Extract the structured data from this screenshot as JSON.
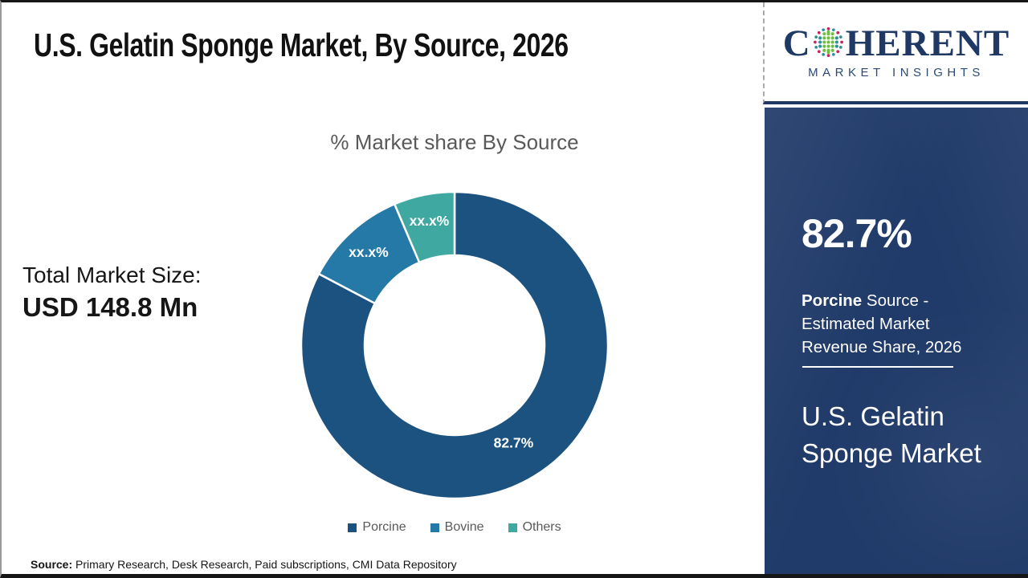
{
  "header": {
    "title": "U.S. Gelatin Sponge Market, By Source, 2026"
  },
  "logo": {
    "brand_first_letter": "C",
    "brand_rest": "HERENT",
    "tagline": "MARKET INSIGHTS",
    "navy": "#1F3864",
    "globe_colors": {
      "teal": "#2D8F99",
      "green": "#70BE3F",
      "crimson": "#C4245C"
    }
  },
  "chart_data": {
    "type": "pie",
    "variant": "donut",
    "title": "% Market share By Source",
    "labels": [
      "Porcine",
      "Bovine",
      "Others"
    ],
    "values": [
      82.7,
      10.9,
      6.4
    ],
    "display_labels": [
      "82.7%",
      "xx.x%",
      "xx.x%"
    ],
    "colors": [
      "#1C527F",
      "#2579A6",
      "#3FA9A1"
    ],
    "legend_position": "bottom",
    "start_angle_deg": 0,
    "direction": "clockwise"
  },
  "total_market": {
    "label": "Total Market Size:",
    "value": "USD 148.8 Mn"
  },
  "source_note": {
    "label": "Source:",
    "text": " Primary Research, Desk Research, Paid subscriptions, CMI Data Repository"
  },
  "panel": {
    "background": "#203A69",
    "stat_value": "82.7%",
    "stat_term": "Porcine",
    "stat_desc_rest": " Source -\nEstimated Market\nRevenue Share, 2026",
    "market_name": "U.S. Gelatin\nSponge Market"
  }
}
